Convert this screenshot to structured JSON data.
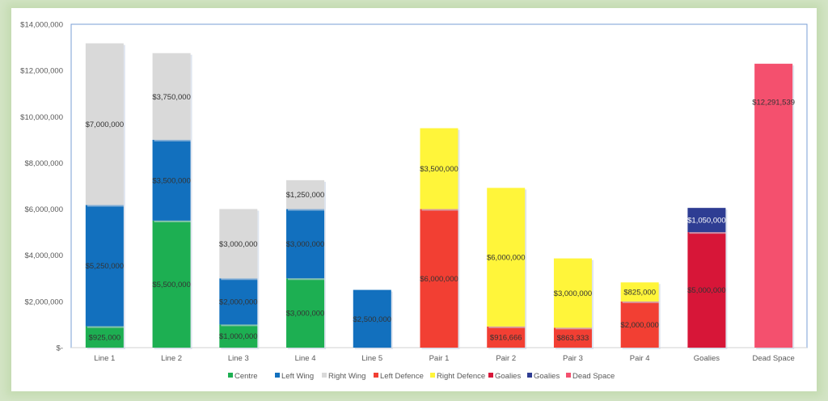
{
  "chart_data": {
    "type": "bar",
    "stacked": true,
    "title": "",
    "xlabel": "",
    "ylabel": "",
    "ylim": [
      0,
      14000000
    ],
    "y_ticks": [
      0,
      2000000,
      4000000,
      6000000,
      8000000,
      10000000,
      12000000,
      14000000
    ],
    "y_tick_labels": [
      "$-",
      "$2,000,000",
      "$4,000,000",
      "$6,000,000",
      "$8,000,000",
      "$10,000,000",
      "$12,000,000",
      "$14,000,000"
    ],
    "categories": [
      "Line 1",
      "Line 2",
      "Line 3",
      "Line 4",
      "Line 5",
      "Pair 1",
      "Pair 2",
      "Pair 3",
      "Pair 4",
      "Goalies",
      "Dead Space"
    ],
    "legend_position": "bottom",
    "series": [
      {
        "name": "Centre",
        "color": "#1daf52",
        "label_color": "#333333",
        "values": [
          925000,
          5500000,
          1000000,
          3000000,
          null,
          null,
          null,
          null,
          null,
          null,
          null
        ],
        "labels": [
          "$925,000",
          "$5,500,000",
          "$1,000,000",
          "$3,000,000",
          null,
          null,
          null,
          null,
          null,
          null,
          null
        ]
      },
      {
        "name": "Left Wing",
        "color": "#1270be",
        "label_color": "#333333",
        "values": [
          5250000,
          3500000,
          2000000,
          3000000,
          2500000,
          null,
          null,
          null,
          null,
          null,
          null
        ],
        "labels": [
          "$5,250,000",
          "$3,500,000",
          "$2,000,000",
          "$3,000,000",
          "$2,500,000",
          null,
          null,
          null,
          null,
          null,
          null
        ]
      },
      {
        "name": "Right Wing",
        "color": "#d9d9d9",
        "label_color": "#333333",
        "values": [
          7000000,
          3750000,
          3000000,
          1250000,
          null,
          null,
          null,
          null,
          null,
          null,
          null
        ],
        "labels": [
          "$7,000,000",
          "$3,750,000",
          "$3,000,000",
          "$1,250,000",
          null,
          null,
          null,
          null,
          null,
          null,
          null
        ]
      },
      {
        "name": "Left Defence",
        "color": "#f23f33",
        "label_color": "#333333",
        "values": [
          null,
          null,
          null,
          null,
          null,
          6000000,
          916666,
          863333,
          2000000,
          null,
          null
        ],
        "labels": [
          null,
          null,
          null,
          null,
          null,
          "$6,000,000",
          "$916,666",
          "$863,333",
          "$2,000,000",
          null,
          null
        ]
      },
      {
        "name": "Right Defence",
        "color": "#fff53a",
        "label_color": "#333333",
        "values": [
          null,
          null,
          null,
          null,
          null,
          3500000,
          6000000,
          3000000,
          825000,
          null,
          null
        ],
        "labels": [
          null,
          null,
          null,
          null,
          null,
          "$3,500,000",
          "$6,000,000",
          "$3,000,000",
          "$825,000",
          null,
          null
        ]
      },
      {
        "name": "Goalies",
        "color": "#d71638",
        "label_color": "#333333",
        "values": [
          null,
          null,
          null,
          null,
          null,
          null,
          null,
          null,
          null,
          5000000,
          null
        ],
        "labels": [
          null,
          null,
          null,
          null,
          null,
          null,
          null,
          null,
          null,
          "$5,000,000",
          null
        ]
      },
      {
        "name": "Goalies",
        "color": "#2e3d93",
        "label_color": "#ffffff",
        "values": [
          null,
          null,
          null,
          null,
          null,
          null,
          null,
          null,
          null,
          1050000,
          null
        ],
        "labels": [
          null,
          null,
          null,
          null,
          null,
          null,
          null,
          null,
          null,
          "$1,050,000",
          null
        ]
      },
      {
        "name": "Dead Space",
        "color": "#f4506e",
        "label_color": "#333333",
        "values": [
          null,
          null,
          null,
          null,
          null,
          null,
          null,
          null,
          null,
          null,
          12291539
        ],
        "labels": [
          null,
          null,
          null,
          null,
          null,
          null,
          null,
          null,
          null,
          null,
          "$12,291,539"
        ]
      }
    ]
  }
}
